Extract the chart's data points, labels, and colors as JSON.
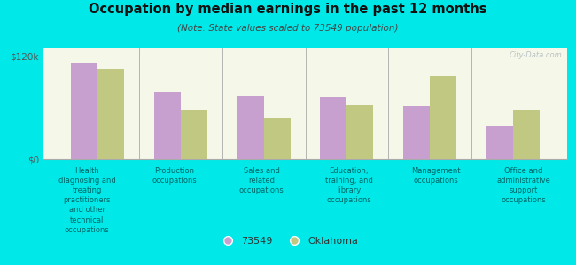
{
  "title": "Occupation by median earnings in the past 12 months",
  "subtitle": "(Note: State values scaled to 73549 population)",
  "background_color": "#00e8e8",
  "plot_bg_top": "#f5f8e8",
  "plot_bg_bottom": "#e8f0d0",
  "categories": [
    "Health\ndiagnosing and\ntreating\npractitioners\nand other\ntechnical\noccupations",
    "Production\noccupations",
    "Sales and\nrelated\noccupations",
    "Education,\ntraining, and\nlibrary\noccupations",
    "Management\noccupations",
    "Office and\nadministrative\nsupport\noccupations"
  ],
  "values_73549": [
    112000,
    78000,
    73000,
    72000,
    62000,
    38000
  ],
  "values_oklahoma": [
    105000,
    57000,
    47000,
    63000,
    97000,
    57000
  ],
  "color_73549": "#c8a0d0",
  "color_oklahoma": "#c0c882",
  "ylim": [
    0,
    130000
  ],
  "yticks": [
    0,
    120000
  ],
  "ytick_labels": [
    "$0",
    "$120k"
  ],
  "bar_width": 0.32,
  "legend_label_73549": "73549",
  "legend_label_oklahoma": "Oklahoma",
  "watermark": "City-Data.com",
  "xlabel_color": "#006666",
  "title_color": "#111111",
  "subtitle_color": "#444444"
}
